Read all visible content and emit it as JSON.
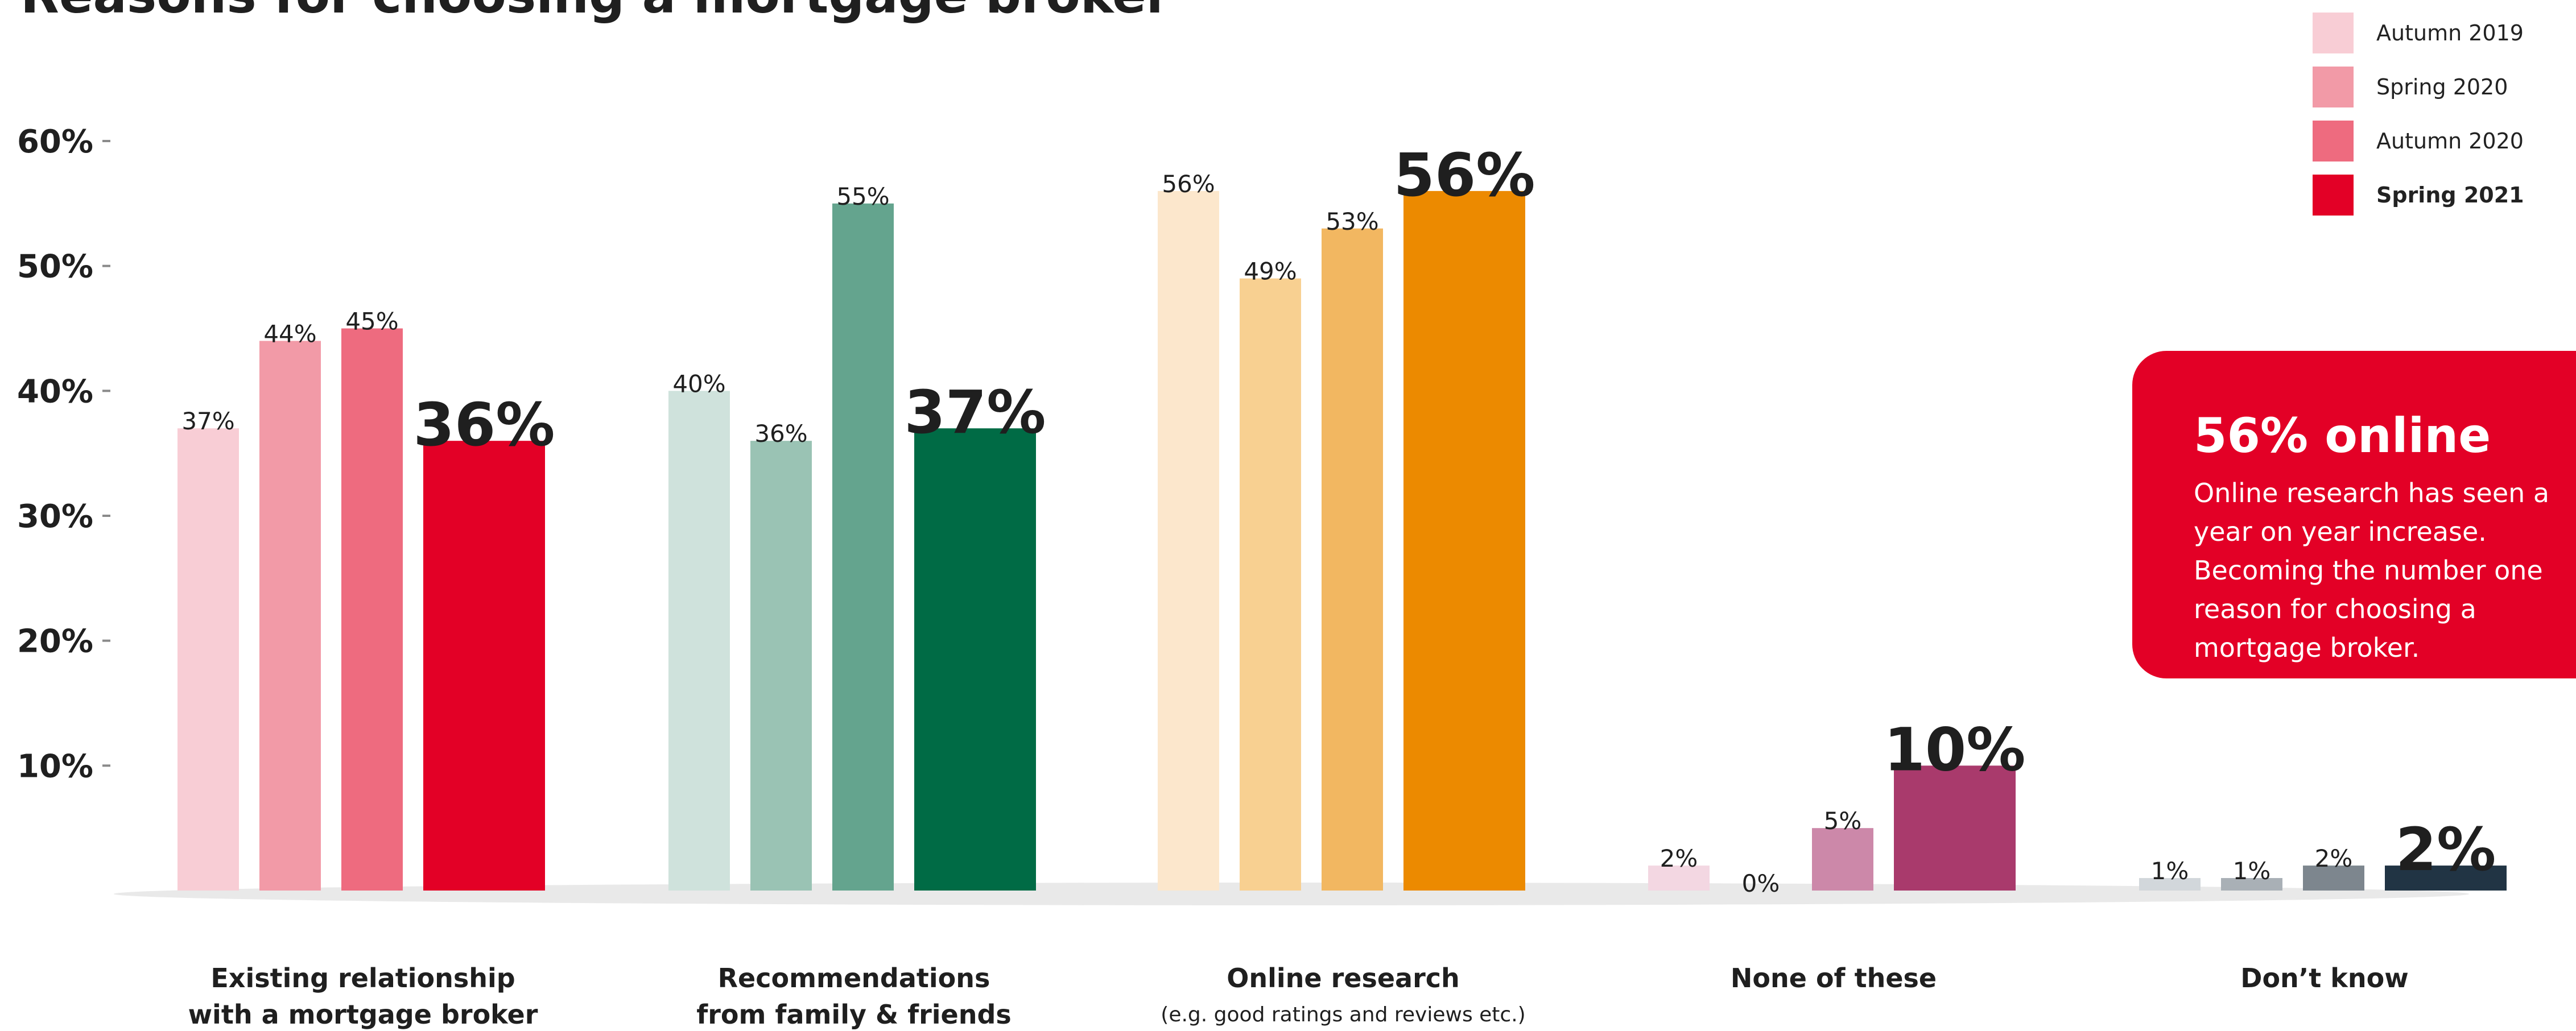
{
  "chart_data": {
    "type": "bar",
    "title": "Reasons for choosing a mortgage broker",
    "xlabel": "",
    "ylabel": "",
    "ylim": [
      0,
      60
    ],
    "yticks": [
      "10%",
      "20%",
      "30%",
      "40%",
      "50%",
      "60%"
    ],
    "ytick_values": [
      10,
      20,
      30,
      40,
      50,
      60
    ],
    "legend_position": "top-right",
    "categories": [
      {
        "line1": "Existing relationship",
        "line2": "with a mortgage broker",
        "sub": "",
        "colors": [
          "#f8cdd5",
          "#f29aa7",
          "#ee6b7f",
          "#e30026"
        ]
      },
      {
        "line1": "Recommendations",
        "line2": "from family & friends",
        "sub": "",
        "colors": [
          "#cfe2dc",
          "#9ac3b4",
          "#64a48e",
          "#006b45"
        ]
      },
      {
        "line1": "Online research",
        "line2": "",
        "sub": "(e.g. good ratings and reviews etc.)",
        "colors": [
          "#fce7cc",
          "#f8d091",
          "#f2b761",
          "#ec8a00"
        ]
      },
      {
        "line1": "None of these",
        "line2": "",
        "sub": "",
        "colors": [
          "#f3d7e2",
          "#e6b6cb",
          "#cc88a9",
          "#a93a6c"
        ]
      },
      {
        "line1": "Don’t know",
        "line2": "",
        "sub": "",
        "colors": [
          "#d2d7db",
          "#a9b0b6",
          "#7d868e",
          "#213444"
        ]
      }
    ],
    "series": [
      {
        "name": "Autumn 2019",
        "values": [
          37,
          40,
          56,
          2,
          1
        ],
        "labels": [
          "37%",
          "40%",
          "56%",
          "2%",
          "1%"
        ]
      },
      {
        "name": "Spring 2020",
        "values": [
          44,
          36,
          49,
          0,
          1
        ],
        "labels": [
          "44%",
          "36%",
          "49%",
          "0%",
          "1%"
        ]
      },
      {
        "name": "Autumn 2020",
        "values": [
          45,
          55,
          53,
          5,
          2
        ],
        "labels": [
          "45%",
          "55%",
          "53%",
          "5%",
          "2%"
        ]
      },
      {
        "name": "Spring 2021",
        "values": [
          36,
          37,
          56,
          10,
          2
        ],
        "labels": [
          "36%",
          "37%",
          "56%",
          "10%",
          "2%"
        ]
      }
    ]
  },
  "legend": {
    "items": [
      {
        "label": "Autumn 2019",
        "color": "#f8cdd5"
      },
      {
        "label": "Spring 2020",
        "color": "#f29aa7"
      },
      {
        "label": "Autumn 2020",
        "color": "#ee6b7f"
      },
      {
        "label": "Spring 2021",
        "color": "#e30026"
      }
    ]
  },
  "callout": {
    "title": "56% online",
    "body": "Online research has seen a year on year increase. Becoming the number one reason for choosing a mortgage broker."
  }
}
